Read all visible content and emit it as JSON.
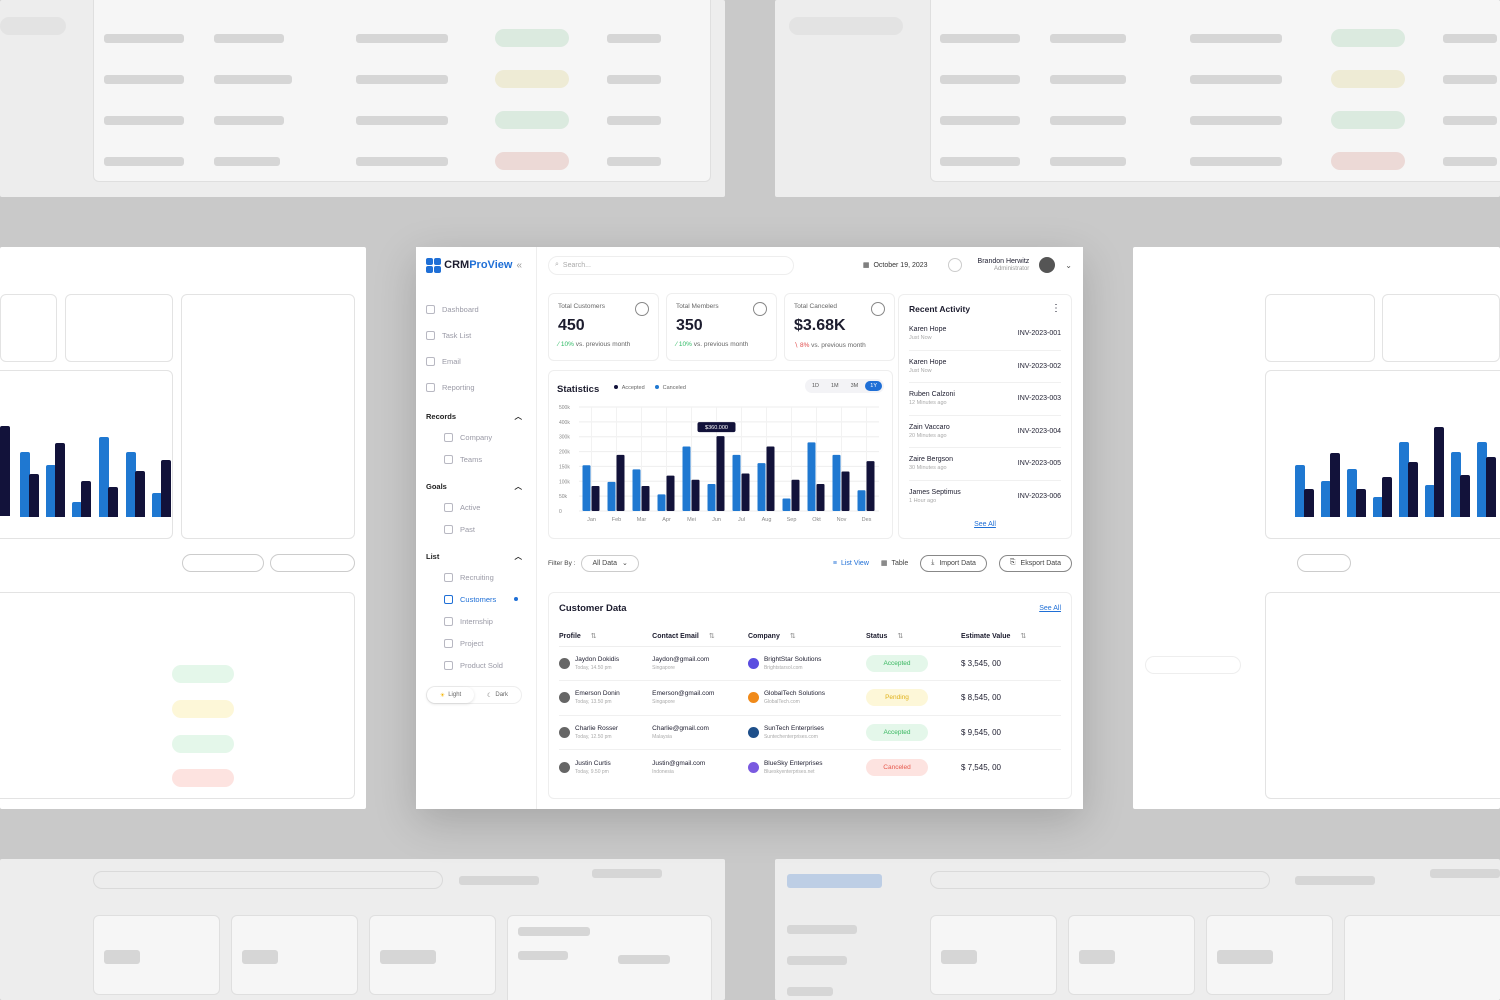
{
  "app": {
    "brand_a": "CRM",
    "brand_b": "ProView",
    "collapse": "«"
  },
  "search": {
    "placeholder": "Search..."
  },
  "header": {
    "date": "October 19, 2023",
    "user_name": "Brandon Herwitz",
    "user_role": "Administrator"
  },
  "nav": {
    "items": [
      {
        "label": "Dashboard"
      },
      {
        "label": "Task List"
      },
      {
        "label": "Email"
      },
      {
        "label": "Reporting"
      }
    ],
    "records": {
      "title": "Records",
      "items": [
        {
          "label": "Company"
        },
        {
          "label": "Teams"
        }
      ]
    },
    "goals": {
      "title": "Goals",
      "items": [
        {
          "label": "Active"
        },
        {
          "label": "Past"
        }
      ]
    },
    "list": {
      "title": "List",
      "items": [
        {
          "label": "Recruiting"
        },
        {
          "label": "Customers"
        },
        {
          "label": "Internship"
        },
        {
          "label": "Project"
        },
        {
          "label": "Product Sold"
        }
      ]
    },
    "theme": {
      "light": "Light",
      "dark": "Dark"
    }
  },
  "stats": [
    {
      "label": "Total Customers",
      "value": "450",
      "change": "10%",
      "suffix": "vs. previous month",
      "dir": "up"
    },
    {
      "label": "Total Members",
      "value": "350",
      "change": "10%",
      "suffix": "vs. previous month",
      "dir": "up"
    },
    {
      "label": "Total Canceled",
      "value": "$3.68K",
      "change": "8%",
      "suffix": "vs. previous month",
      "dir": "down"
    }
  ],
  "activity": {
    "title": "Recent Activity",
    "rows": [
      {
        "name": "Karen Hope",
        "time": "Just Now",
        "invoice": "INV-2023-001"
      },
      {
        "name": "Karen Hope",
        "time": "Just Now",
        "invoice": "INV-2023-002"
      },
      {
        "name": "Ruben Calzoni",
        "time": "12 Minutes ago",
        "invoice": "INV-2023-003"
      },
      {
        "name": "Zain Vaccaro",
        "time": "20 Minutes ago",
        "invoice": "INV-2023-004"
      },
      {
        "name": "Zaire Bergson",
        "time": "30 Minutes ago",
        "invoice": "INV-2023-005"
      },
      {
        "name": "James Septimus",
        "time": "1 Hour ago",
        "invoice": "INV-2023-006"
      }
    ],
    "see_all": "See All"
  },
  "statistics": {
    "title": "Statistics",
    "ranges": [
      "1D",
      "1M",
      "3M",
      "1Y"
    ],
    "active_range": "1Y",
    "tooltip": "$360.000"
  },
  "chart_data": {
    "type": "bar",
    "categories": [
      "Jan",
      "Feb",
      "Mar",
      "Apr",
      "Mei",
      "Jun",
      "Jul",
      "Aug",
      "Sep",
      "Okt",
      "Nov",
      "Des"
    ],
    "series": [
      {
        "name": "Accepted",
        "values": [
          220,
          140,
          200,
          80,
          310,
          130,
          270,
          230,
          60,
          330,
          270,
          100
        ],
        "color": "#1f78d1"
      },
      {
        "name": "Canceled",
        "values": [
          120,
          270,
          120,
          170,
          150,
          360,
          180,
          310,
          150,
          130,
          190,
          240
        ],
        "color": "#12123a"
      }
    ],
    "yticks": [
      "0",
      "50k",
      "100k",
      "150k",
      "200k",
      "300k",
      "400k",
      "500k"
    ],
    "ylim": [
      0,
      500
    ],
    "grid": true,
    "legend": "top-left"
  },
  "filter": {
    "label": "Filter By :",
    "value": "All Data",
    "list_view": "List View",
    "table": "Table",
    "import": "Import Data",
    "export": "Eksport Data"
  },
  "customers": {
    "title": "Customer Data",
    "see_all": "See All",
    "headers": [
      "Profile",
      "Contact Email",
      "Company",
      "Status",
      "Estimate Value"
    ],
    "rows": [
      {
        "name": "Jaydon Dokidis",
        "time": "Today, 14.50 pm",
        "email": "Jaydon@gmail.com",
        "loc": "Singapore",
        "company": "BrightStar Solutions",
        "site": "Brightstarsol.com",
        "status": "Accepted",
        "value": "$ 3,545, 00",
        "logo_color": "#5a4de0"
      },
      {
        "name": "Emerson Donin",
        "time": "Today, 13.50 pm",
        "email": "Emerson@gmail.com",
        "loc": "Singapore",
        "company": "GlobalTech Solutions",
        "site": "GlobalTech.com",
        "status": "Pending",
        "value": "$ 8,545, 00",
        "logo_color": "#f08a1a"
      },
      {
        "name": "Charlie Rosser",
        "time": "Today, 12.50 pm",
        "email": "Charlie@gmail.com",
        "loc": "Malaysia",
        "company": "SunTech Enterprises",
        "site": "Suntechenterprises.com",
        "status": "Accepted",
        "value": "$ 9,545, 00",
        "logo_color": "#1e4f8a"
      },
      {
        "name": "Justin Curtis",
        "time": "Today, 9.50 pm",
        "email": "Justin@gmail.com",
        "loc": "Indonesia",
        "company": "BlueSky Enterprises",
        "site": "Blueskyenterprises.net",
        "status": "Canceled",
        "value": "$ 7,545, 00",
        "logo_color": "#7a5ae0"
      }
    ]
  }
}
